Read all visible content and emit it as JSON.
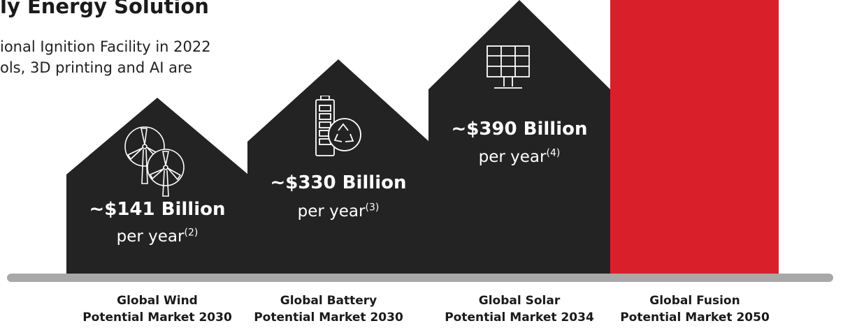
{
  "header": {
    "title": "ly Energy Solution",
    "intro_line1": "ional Ignition Facility in 2022",
    "intro_line2": "ols, 3D printing and AI are"
  },
  "markets": [
    {
      "id": "wind",
      "icon": "wind-turbine-icon",
      "value": "~$141 Billion",
      "per": "per year",
      "note": "(2)",
      "label_line1": "Global Wind",
      "label_line2": "Potential Market 2030"
    },
    {
      "id": "battery",
      "icon": "battery-recycle-icon",
      "value": "~$330 Billion",
      "per": "per year",
      "note": "(3)",
      "label_line1": "Global Battery",
      "label_line2": "Potential Market 2030"
    },
    {
      "id": "solar",
      "icon": "solar-panel-icon",
      "value": "~$390 Billion",
      "per": "per year",
      "note": "(4)",
      "label_line1": "Global Solar",
      "label_line2": "Potential Market 2034"
    },
    {
      "id": "fusion",
      "label_line1": "Global Fusion",
      "label_line2": "Potential Market 2050"
    }
  ],
  "colors": {
    "house": "#232323",
    "fusion_bar": "#d9202a",
    "ground": "#a8a8a8"
  }
}
